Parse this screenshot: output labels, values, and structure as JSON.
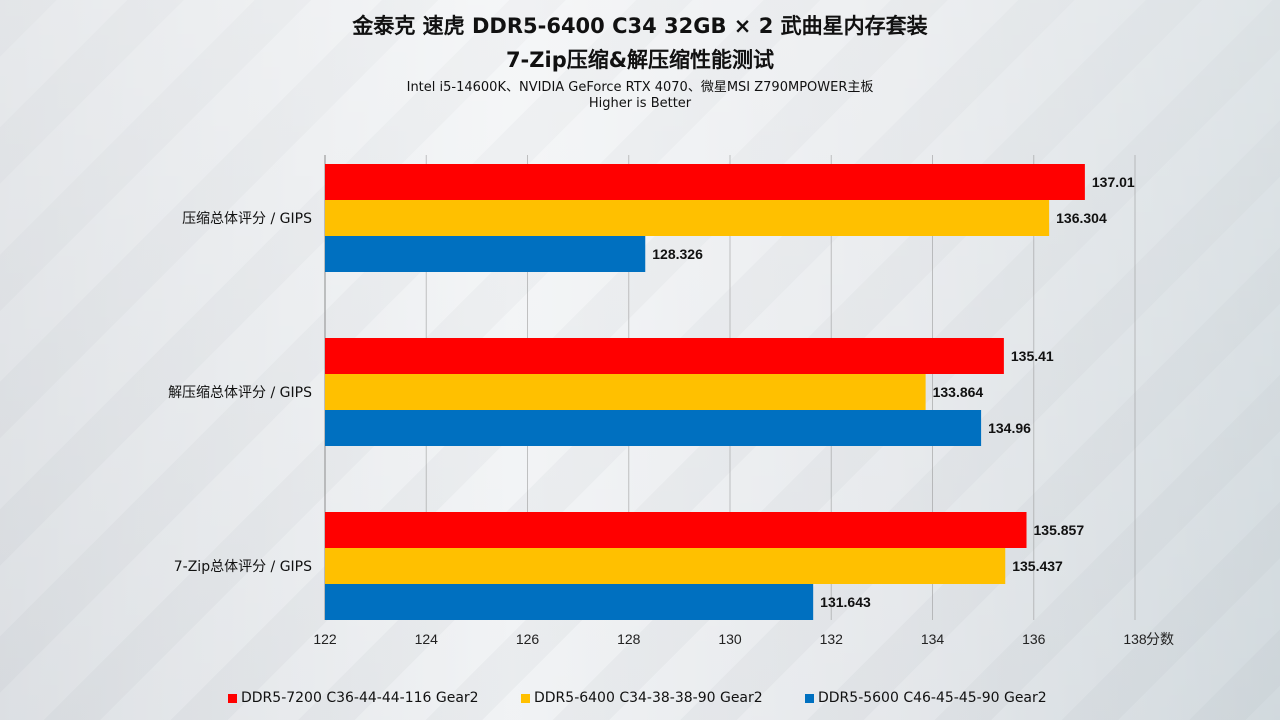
{
  "header": {
    "title": "金泰克 速虎 DDR5-6400 C34 32GB × 2 武曲星内存套装",
    "subtitle": "7-Zip压缩&解压缩性能测试",
    "platform": "Intel i5-14600K、NVIDIA GeForce RTX 4070、微星MSI Z790MPOWER主板",
    "note": "Higher is Better"
  },
  "chart_data": {
    "type": "bar",
    "orientation": "horizontal",
    "categories": [
      "压缩总体评分 / GIPS",
      "解压缩总体评分 / GIPS",
      "7-Zip总体评分 / GIPS"
    ],
    "series": [
      {
        "name": "DDR5-7200 C36-44-44-116 Gear2",
        "color": "#ff0000",
        "values": [
          137.01,
          135.41,
          135.857
        ]
      },
      {
        "name": "DDR5-6400 C34-38-38-90 Gear2",
        "color": "#ffc000",
        "values": [
          136.304,
          133.864,
          135.437
        ]
      },
      {
        "name": "DDR5-5600 C46-45-45-90 Gear2",
        "color": "#0070c0",
        "values": [
          128.326,
          134.96,
          131.643
        ]
      }
    ],
    "value_labels": [
      [
        "137.01",
        "136.304",
        "128.326"
      ],
      [
        "135.41",
        "133.864",
        "134.96"
      ],
      [
        "135.857",
        "135.437",
        "131.643"
      ]
    ],
    "xlim": [
      122,
      138
    ],
    "xticks": [
      "122",
      "124",
      "126",
      "128",
      "130",
      "132",
      "134",
      "136",
      "138"
    ],
    "xlabel": "分数",
    "grid": true,
    "legend_position": "bottom"
  }
}
